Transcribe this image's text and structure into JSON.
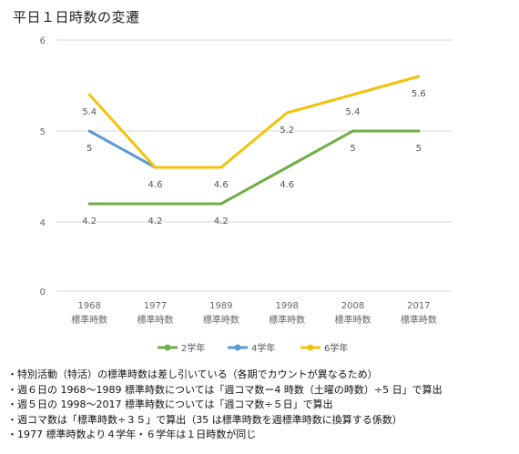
{
  "title": "平日１日時数の変遷",
  "chart_data": {
    "type": "line",
    "categories": [
      [
        "1968",
        "標準時数"
      ],
      [
        "1977",
        "標準時数"
      ],
      [
        "1989",
        "標準時数"
      ],
      [
        "1998",
        "標準時数"
      ],
      [
        "2008",
        "標準時数"
      ],
      [
        "2017",
        "標準時数"
      ]
    ],
    "y_ticks": [
      0,
      4,
      5,
      6
    ],
    "ylim": [
      0,
      6
    ],
    "grid": true,
    "legend_position": "bottom",
    "series": [
      {
        "name": "2学年",
        "color": "#70ad47",
        "values": [
          4.2,
          4.2,
          4.2,
          4.6,
          5,
          5
        ],
        "labels": [
          "4.2",
          "4.2",
          "4.2",
          "4.6",
          "5",
          "5"
        ]
      },
      {
        "name": "4学年",
        "color": "#5b9bd5",
        "values": [
          5,
          4.6,
          null,
          null,
          null,
          null
        ],
        "labels": [
          "5",
          "4.6",
          "",
          "",
          "",
          ""
        ]
      },
      {
        "name": "6学年",
        "color": "#f4c20d",
        "values": [
          5.4,
          4.6,
          4.6,
          5.2,
          5.4,
          5.6
        ],
        "labels": [
          "5.4",
          "",
          "4.6",
          "5.2",
          "5.4",
          "5.6"
        ]
      }
    ]
  },
  "notes": [
    "・特別活動（特活）の標準時数は差し引いている（各期でカウントが異なるため）",
    "・週６日の 1968～1989 標準時数については「週コマ数ー4 時数（土曜の時数）÷5 日」で算出",
    "・週５日の 1998～2017 標準時数については「週コマ数÷５日」で算出",
    "・週コマ数は「標準時数÷３５」で算出（35 は標準時数を週標準時数に換算する係数）",
    "・1977 標準時数より４学年・６学年は１日時数が同じ"
  ]
}
